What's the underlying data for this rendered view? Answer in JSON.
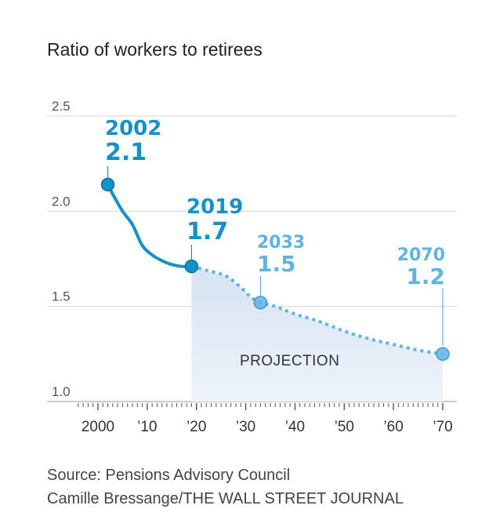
{
  "title": "Ratio of workers to retirees",
  "source": "Source:  Pensions Advisory Council",
  "credit": "Camille Bressange/THE WALL STREET JOURNAL",
  "colors": {
    "actual": "#1590c8",
    "projected": "#5fb4e0",
    "projection_fill": "#dfe9f5",
    "grid": "#d4d4d4"
  },
  "chart_data": {
    "type": "line",
    "title": "Ratio of workers to retirees",
    "xlim": [
      1996,
      2072
    ],
    "ylim": [
      1.0,
      2.5
    ],
    "yticks": [
      1.0,
      1.5,
      2.0,
      2.5
    ],
    "ytick_labels": [
      "1.0",
      "1.5",
      "2.0",
      "2.5"
    ],
    "xticks": [
      2000,
      2010,
      2020,
      2030,
      2040,
      2050,
      2060,
      2070
    ],
    "xtick_labels": [
      "2000",
      "’10",
      "’20",
      "’30",
      "’40",
      "’50",
      "’60",
      "’70"
    ],
    "grid": true,
    "projection_label": "PROJECTION",
    "projection_start": 2019,
    "series": [
      {
        "style": "solid",
        "points": [
          [
            2002,
            2.14
          ],
          [
            2003,
            2.09
          ],
          [
            2005,
            2.0
          ],
          [
            2007,
            1.93
          ],
          [
            2009,
            1.82
          ],
          [
            2011,
            1.77
          ],
          [
            2013,
            1.74
          ],
          [
            2015,
            1.72
          ],
          [
            2017,
            1.71
          ],
          [
            2019,
            1.71
          ]
        ]
      },
      {
        "style": "dotted",
        "points": [
          [
            2019,
            1.71
          ],
          [
            2022,
            1.69
          ],
          [
            2026,
            1.66
          ],
          [
            2029,
            1.6
          ],
          [
            2031,
            1.55
          ],
          [
            2033,
            1.52
          ],
          [
            2036,
            1.5
          ],
          [
            2040,
            1.46
          ],
          [
            2045,
            1.42
          ],
          [
            2050,
            1.37
          ],
          [
            2055,
            1.33
          ],
          [
            2060,
            1.3
          ],
          [
            2065,
            1.27
          ],
          [
            2070,
            1.25
          ]
        ]
      }
    ],
    "annotations": [
      {
        "year_label": "2002",
        "value_label": "2.1",
        "x": 2002,
        "y": 2.14
      },
      {
        "year_label": "2019",
        "value_label": "1.7",
        "x": 2019,
        "y": 1.71
      },
      {
        "year_label": "2033",
        "value_label": "1.5",
        "x": 2033,
        "y": 1.52
      },
      {
        "year_label": "2070",
        "value_label": "1.2",
        "x": 2070,
        "y": 1.25
      }
    ]
  }
}
